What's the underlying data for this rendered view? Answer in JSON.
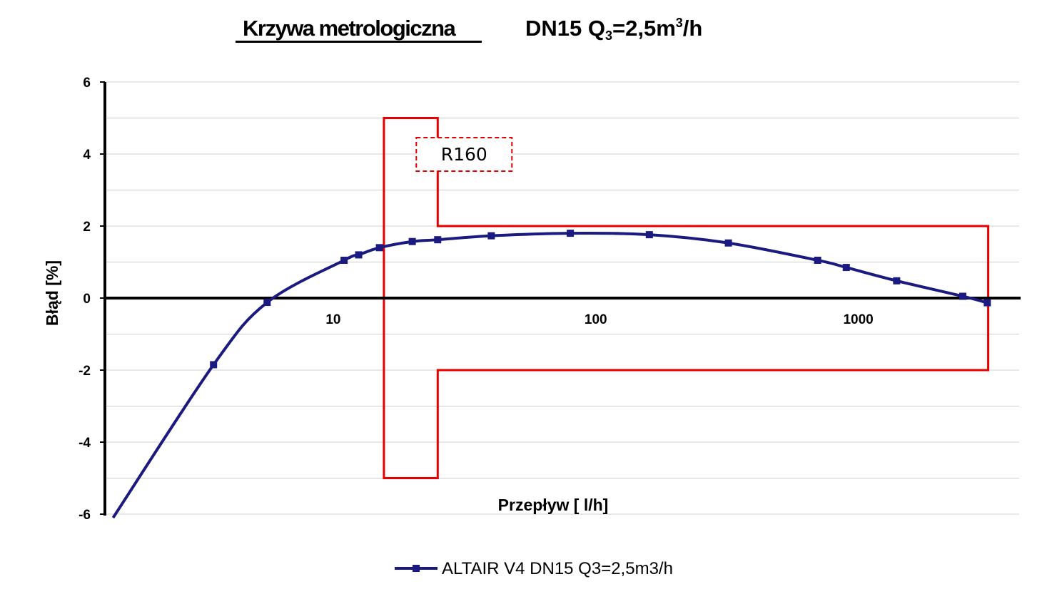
{
  "title": {
    "main": "Krzywa metrologiczna",
    "sub_prefix": "DN15 Q",
    "sub_subscript": "3",
    "sub_mid": "=2,5m",
    "sub_superscript": "3",
    "sub_suffix": "/h"
  },
  "chart_data": {
    "type": "line",
    "xscale": "log",
    "xlim": [
      1.35,
      4100
    ],
    "ylim": [
      -6,
      6
    ],
    "xlabel": "Przepływ [ l/h]",
    "ylabel": "Błąd [%]",
    "x_ticks": [
      10,
      100,
      1000
    ],
    "x_tick_labels": [
      "10",
      "100",
      "1000"
    ],
    "y_ticks": [
      -6,
      -4,
      -2,
      0,
      2,
      4,
      6
    ],
    "y_tick_labels": [
      "-6",
      "-4",
      "-2",
      "0",
      "2",
      "4",
      "6"
    ],
    "y_minor_gridlines": [
      -5,
      -3,
      -1,
      1,
      3,
      5
    ],
    "grid": true,
    "legend_position": "bottom",
    "series": [
      {
        "name": "ALTAIR V4 DN15 Q3=2,5m3/h",
        "color": "#1a1a80",
        "marker": "square",
        "smooth": true,
        "points": [
          {
            "x": 1.45,
            "y": -6.1
          },
          {
            "x": 3.5,
            "y": -1.85
          },
          {
            "x": 5.6,
            "y": -0.12
          },
          {
            "x": 11,
            "y": 1.05
          },
          {
            "x": 12.5,
            "y": 1.2
          },
          {
            "x": 15,
            "y": 1.4
          },
          {
            "x": 20,
            "y": 1.57
          },
          {
            "x": 25,
            "y": 1.62
          },
          {
            "x": 40,
            "y": 1.73
          },
          {
            "x": 80,
            "y": 1.8
          },
          {
            "x": 160,
            "y": 1.76
          },
          {
            "x": 320,
            "y": 1.53
          },
          {
            "x": 700,
            "y": 1.05
          },
          {
            "x": 900,
            "y": 0.85
          },
          {
            "x": 1400,
            "y": 0.48
          },
          {
            "x": 2500,
            "y": 0.05
          },
          {
            "x": 3100,
            "y": -0.13
          }
        ]
      }
    ],
    "limit_envelope": {
      "color": "#e60000",
      "points": [
        {
          "x": 15.6,
          "y": 5
        },
        {
          "x": 25,
          "y": 5
        },
        {
          "x": 25,
          "y": 2
        },
        {
          "x": 3125,
          "y": 2
        },
        {
          "x": 3125,
          "y": -2
        },
        {
          "x": 25,
          "y": -2
        },
        {
          "x": 25,
          "y": -5
        },
        {
          "x": 15.6,
          "y": -5
        }
      ]
    },
    "annotations": [
      {
        "text": "R160",
        "style": "dashed-red-box",
        "x": 25,
        "y": 4
      }
    ]
  }
}
